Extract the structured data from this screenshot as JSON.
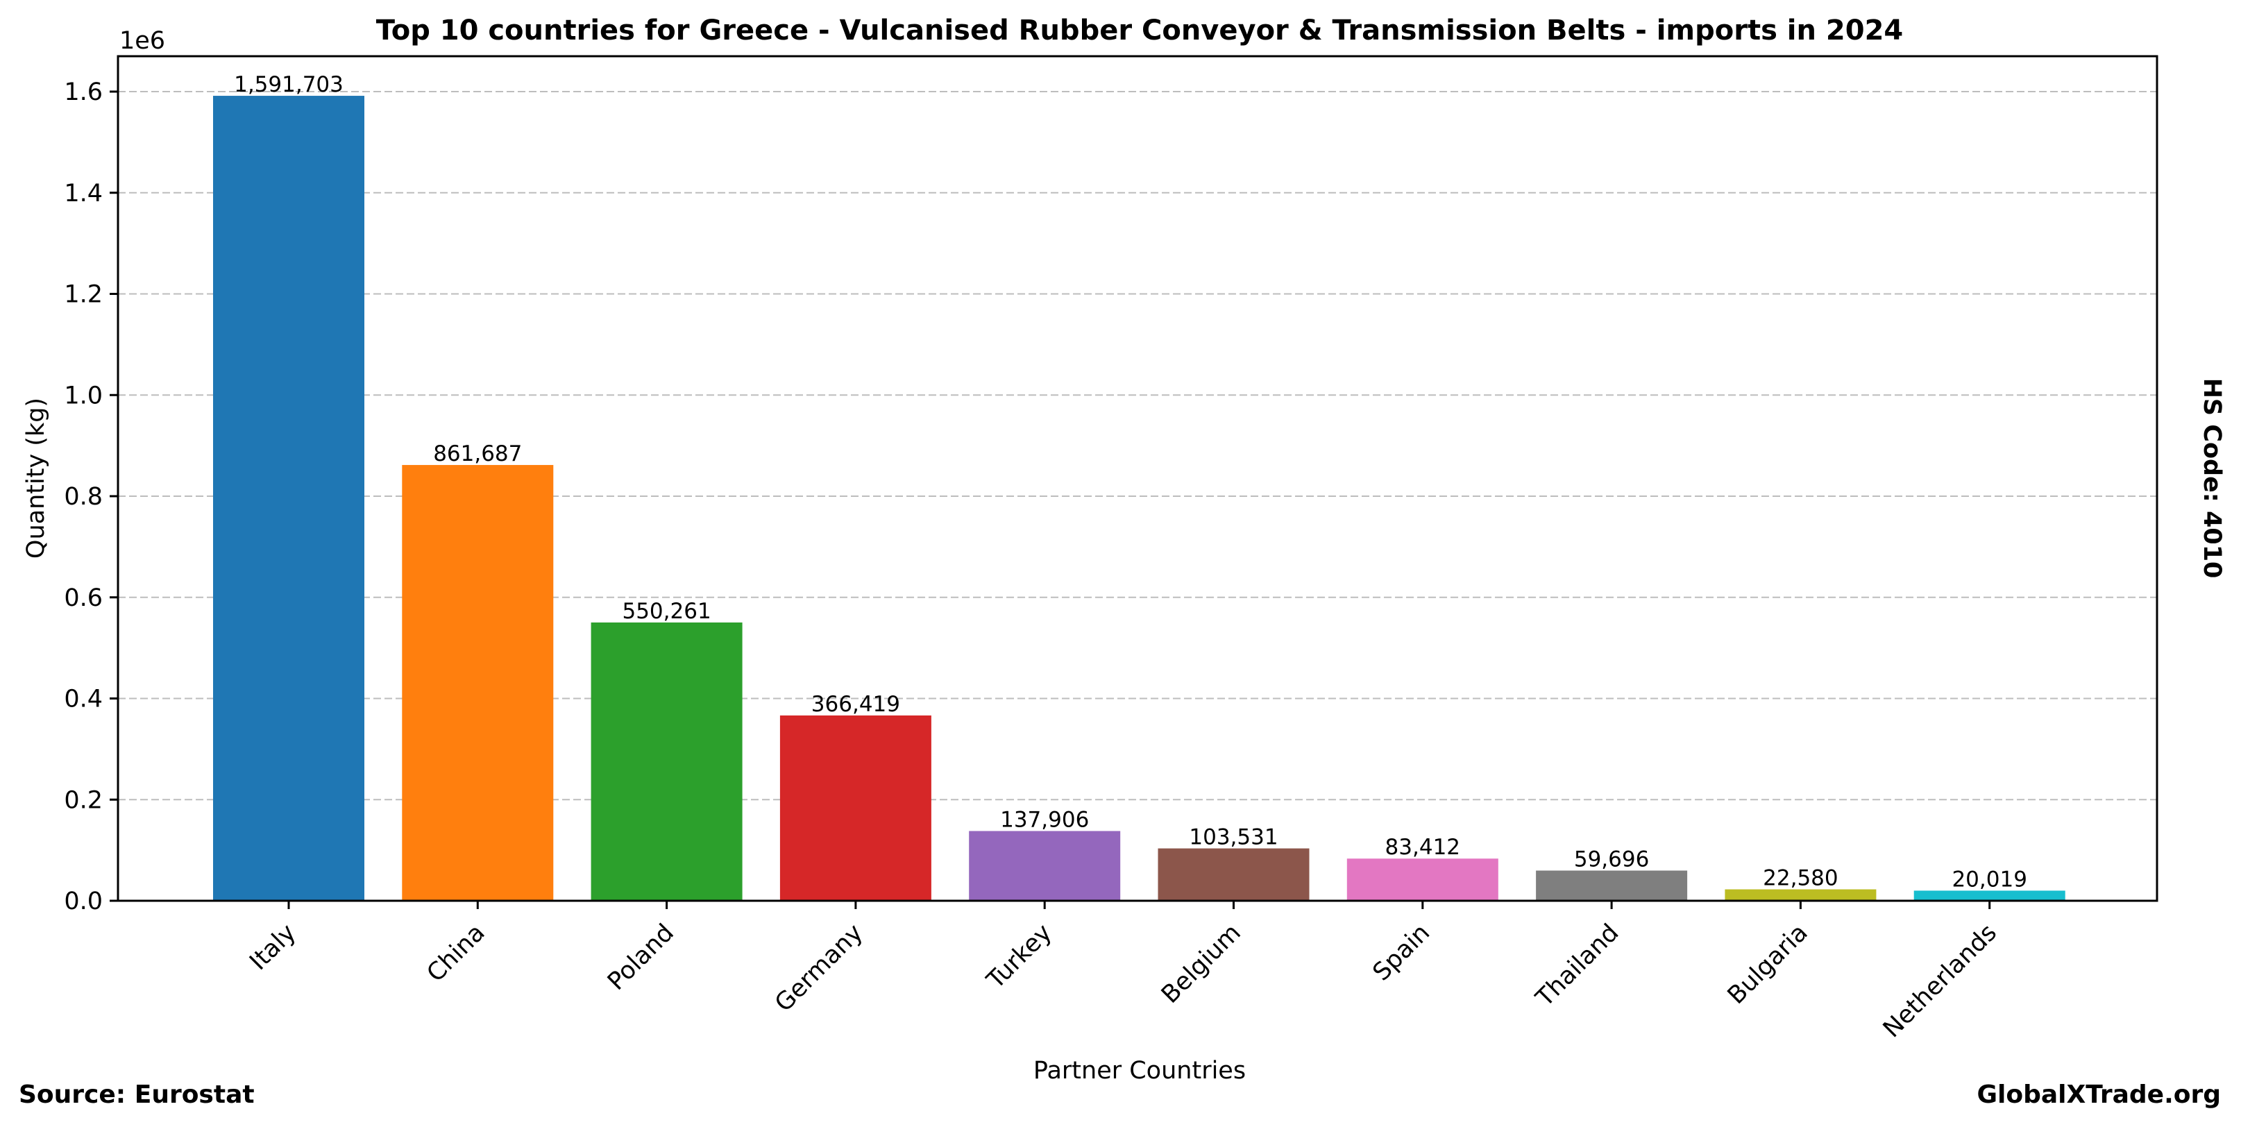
{
  "chart_data": {
    "type": "bar",
    "title": "Top 10 countries for Greece - Vulcanised Rubber Conveyor & Transmission Belts - imports in 2024",
    "xlabel": "Partner Countries",
    "ylabel": "Quantity (kg)",
    "y_scale_label": "1e6",
    "ylim": [
      0,
      1670000
    ],
    "yticks": [
      0,
      200000,
      400000,
      600000,
      800000,
      1000000,
      1200000,
      1400000,
      1600000
    ],
    "ytick_labels": [
      "0.0",
      "0.2",
      "0.4",
      "0.6",
      "0.8",
      "1.0",
      "1.2",
      "1.4",
      "1.6"
    ],
    "grid": "horizontal dashed",
    "categories": [
      "Italy",
      "China",
      "Poland",
      "Germany",
      "Turkey",
      "Belgium",
      "Spain",
      "Thailand",
      "Bulgaria",
      "Netherlands"
    ],
    "values": [
      1591703,
      861687,
      550261,
      366419,
      137906,
      103531,
      83412,
      59696,
      22580,
      20019
    ],
    "value_labels": [
      "1,591,703",
      "861,687",
      "550,261",
      "366,419",
      "137,906",
      "103,531",
      "83,412",
      "59,696",
      "22,580",
      "20,019"
    ],
    "colors": [
      "#1f77b4",
      "#ff7f0e",
      "#2ca02c",
      "#d62728",
      "#9467bd",
      "#8c564b",
      "#e377c2",
      "#7f7f7f",
      "#bcbd22",
      "#17becf"
    ]
  },
  "footer": {
    "source": "Source: Eurostat",
    "brand": "GlobalXTrade.org",
    "side_note": "HS Code: 4010"
  }
}
